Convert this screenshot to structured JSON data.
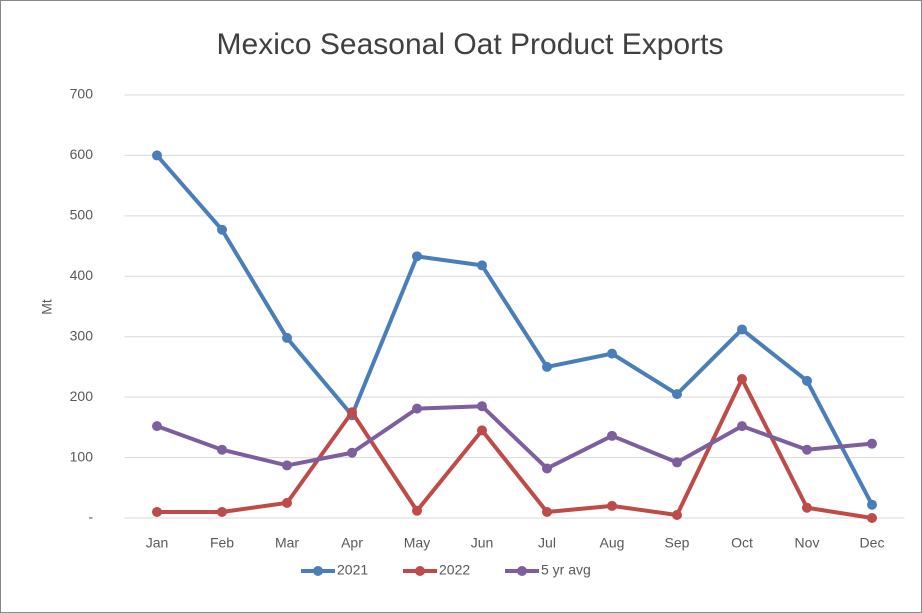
{
  "chart_data": {
    "type": "line",
    "title": "Mexico Seasonal Oat Product Exports",
    "y_label": "Mt",
    "categories": [
      "Jan",
      "Feb",
      "Mar",
      "Apr",
      "May",
      "Jun",
      "Jul",
      "Aug",
      "Sep",
      "Oct",
      "Nov",
      "Dec"
    ],
    "series": [
      {
        "name": "2021",
        "color": "#4a7ebb",
        "values": [
          600,
          477,
          298,
          170,
          433,
          418,
          250,
          272,
          205,
          312,
          227,
          22
        ]
      },
      {
        "name": "2022",
        "color": "#be4b48",
        "values": [
          10,
          10,
          25,
          175,
          12,
          145,
          10,
          20,
          5,
          230,
          17,
          0
        ]
      },
      {
        "name": "5 yr avg",
        "color": "#7d5fa0",
        "values": [
          152,
          113,
          87,
          108,
          181,
          185,
          82,
          136,
          92,
          152,
          113,
          123
        ]
      }
    ],
    "ylim": [
      0,
      700
    ],
    "yticks": [
      {
        "value": 0,
        "label": "-"
      },
      100,
      200,
      300,
      400,
      500,
      600,
      700
    ],
    "grid": true,
    "legend": "bottom"
  }
}
